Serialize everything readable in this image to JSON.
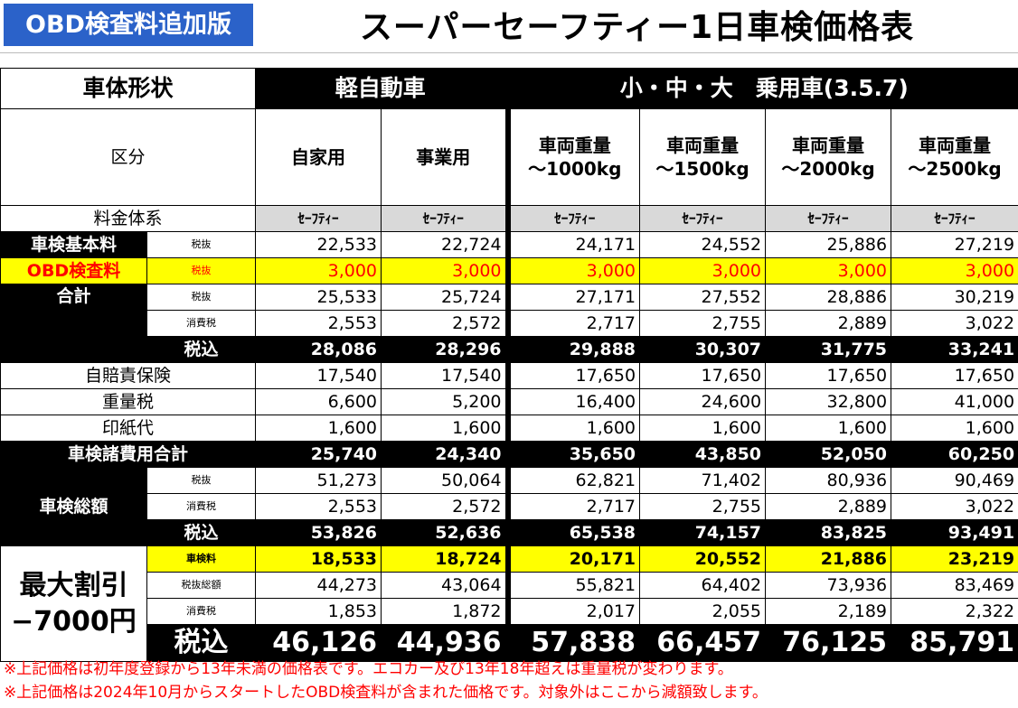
{
  "badge": "OBD検査料追加版",
  "title": "スーパーセーフティー1日車検価格表",
  "headers": {
    "body_type": "車体形状",
    "kei": "軽自動車",
    "passenger": "小・中・大　乗用車(3.5.7)",
    "category": "区分",
    "private": "自家用",
    "business": "事業用",
    "w1": [
      "車両重量",
      "～1000kg"
    ],
    "w2": [
      "車両重量",
      "～1500kg"
    ],
    "w3": [
      "車両重量",
      "～2000kg"
    ],
    "w4": [
      "車両重量",
      "～2500kg"
    ],
    "system": "料金体系",
    "safety": "ｾｰﾌﾃｨｰ"
  },
  "rows": {
    "base_label": "車検基本料",
    "zeinuki": "税抜",
    "zeikomi": "税込",
    "shohizei": "消費税",
    "base": [
      "22,533",
      "22,724",
      "24,171",
      "24,552",
      "25,886",
      "27,219"
    ],
    "obd_label": "OBD検査料",
    "obd": [
      "3,000",
      "3,000",
      "3,000",
      "3,000",
      "3,000",
      "3,000"
    ],
    "total_label": "合計",
    "total_ex": [
      "25,533",
      "25,724",
      "27,171",
      "27,552",
      "28,886",
      "30,219"
    ],
    "total_tax": [
      "2,553",
      "2,572",
      "2,717",
      "2,755",
      "2,889",
      "3,022"
    ],
    "total_in": [
      "28,086",
      "28,296",
      "29,888",
      "30,307",
      "31,775",
      "33,241"
    ],
    "insurance_label": "自賠責保険",
    "insurance": [
      "17,540",
      "17,540",
      "17,650",
      "17,650",
      "17,650",
      "17,650"
    ],
    "weight_tax_label": "重量税",
    "weight_tax": [
      "6,600",
      "5,200",
      "16,400",
      "24,600",
      "32,800",
      "41,000"
    ],
    "stamp_label": "印紙代",
    "stamp": [
      "1,600",
      "1,600",
      "1,600",
      "1,600",
      "1,600",
      "1,600"
    ],
    "fees_label": "車検諸費用合計",
    "fees": [
      "25,740",
      "24,340",
      "35,650",
      "43,850",
      "52,050",
      "60,250"
    ],
    "grand_label": "車検総額",
    "grand_ex": [
      "51,273",
      "50,064",
      "62,821",
      "71,402",
      "80,936",
      "90,469"
    ],
    "grand_tax": [
      "2,553",
      "2,572",
      "2,717",
      "2,755",
      "2,889",
      "3,022"
    ],
    "grand_in": [
      "53,826",
      "52,636",
      "65,538",
      "74,157",
      "83,825",
      "93,491"
    ],
    "discount_label": [
      "最大割引",
      "−7000円"
    ],
    "shakenryo": "車検料",
    "zeinuki_sogaku": "税抜総額",
    "disc_fee": [
      "18,533",
      "18,724",
      "20,171",
      "20,552",
      "21,886",
      "23,219"
    ],
    "disc_ex": [
      "44,273",
      "43,064",
      "55,821",
      "64,402",
      "73,936",
      "83,469"
    ],
    "disc_tax": [
      "1,853",
      "1,872",
      "2,017",
      "2,055",
      "2,189",
      "2,322"
    ],
    "disc_in": [
      "46,126",
      "44,936",
      "57,838",
      "66,457",
      "76,125",
      "85,791"
    ]
  },
  "notes": [
    "※上記価格は初年度登録から13年未満の価格表です。エコカー及び13年18年超えは重量税が変わります。",
    "※上記価格は2024年10月からスタートしたOBD検査料が含まれた価格です。対象外はここから減額致します。"
  ]
}
